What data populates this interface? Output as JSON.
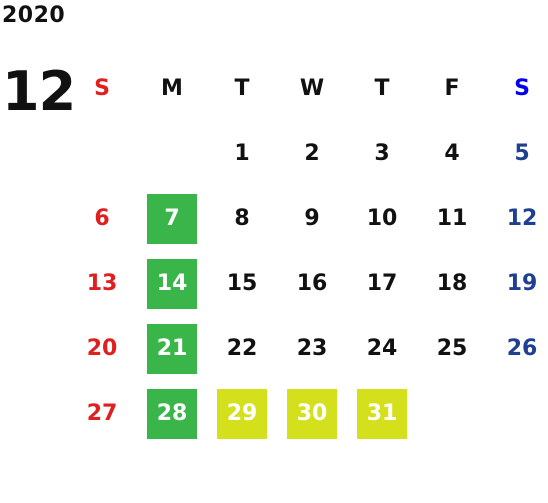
{
  "year": "2020",
  "month": "12",
  "colors": {
    "text": "#111111",
    "sunday": "#e02020",
    "saturday": "#1f3f91",
    "saturday_header": "#0000ee",
    "highlight_green": "#3ab54a",
    "highlight_lime": "#d4e01c",
    "highlight_text": "#ffffff"
  },
  "weekday_headers": [
    "S",
    "M",
    "T",
    "W",
    "T",
    "F",
    "S"
  ],
  "weeks": [
    [
      {
        "d": ""
      },
      {
        "d": ""
      },
      {
        "d": "1"
      },
      {
        "d": "2"
      },
      {
        "d": "3"
      },
      {
        "d": "4"
      },
      {
        "d": "5"
      }
    ],
    [
      {
        "d": "6"
      },
      {
        "d": "7",
        "hl": "green"
      },
      {
        "d": "8"
      },
      {
        "d": "9"
      },
      {
        "d": "10"
      },
      {
        "d": "11"
      },
      {
        "d": "12"
      }
    ],
    [
      {
        "d": "13"
      },
      {
        "d": "14",
        "hl": "green"
      },
      {
        "d": "15"
      },
      {
        "d": "16"
      },
      {
        "d": "17"
      },
      {
        "d": "18"
      },
      {
        "d": "19"
      }
    ],
    [
      {
        "d": "20"
      },
      {
        "d": "21",
        "hl": "green"
      },
      {
        "d": "22"
      },
      {
        "d": "23"
      },
      {
        "d": "24"
      },
      {
        "d": "25"
      },
      {
        "d": "26"
      }
    ],
    [
      {
        "d": "27"
      },
      {
        "d": "28",
        "hl": "green"
      },
      {
        "d": "29",
        "hl": "lime"
      },
      {
        "d": "30",
        "hl": "lime"
      },
      {
        "d": "31",
        "hl": "lime"
      },
      {
        "d": ""
      },
      {
        "d": ""
      }
    ]
  ]
}
